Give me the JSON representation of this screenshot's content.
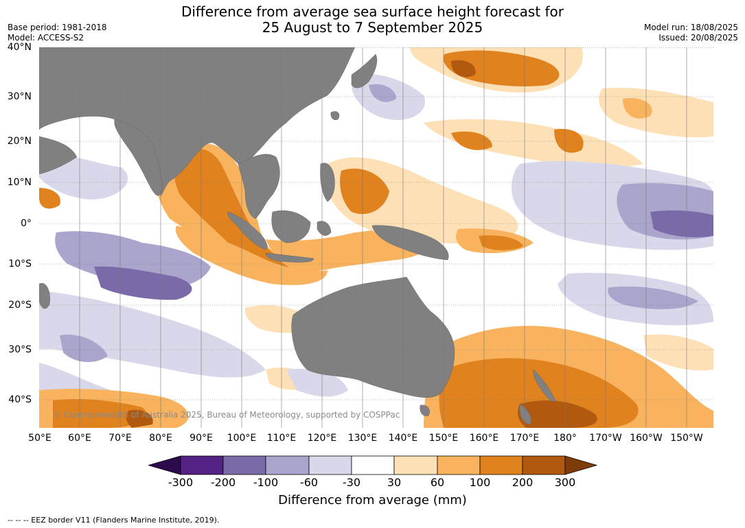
{
  "header": {
    "title_line1": "Difference from average sea surface height forecast for",
    "title_line2": "25 August to 7 September 2025",
    "base_period": "Base period: 1981-2018",
    "model": "Model: ACCESS-S2",
    "model_run": "Model run: 18/08/2025",
    "issued": "Issued: 20/08/2025"
  },
  "map": {
    "copyright": "© Commonwealth of Australia 2025, Bureau of Meteorology, supported by COSPPac",
    "land_color": "#808080",
    "lat_ticks": [
      "40°N",
      "30°N",
      "20°N",
      "10°N",
      "0°",
      "10°S",
      "20°S",
      "30°S",
      "40°S"
    ],
    "lon_ticks": [
      "50°E",
      "60°E",
      "70°E",
      "80°E",
      "90°E",
      "100°E",
      "110°E",
      "120°E",
      "130°E",
      "140°E",
      "150°E",
      "160°E",
      "170°E",
      "180°",
      "170°W",
      "160°W",
      "150°W"
    ]
  },
  "colorbar": {
    "title": "Difference from average (mm)",
    "tick_labels": [
      "-300",
      "-200",
      "-100",
      "-60",
      "-30",
      "30",
      "60",
      "100",
      "200",
      "300"
    ],
    "colors": [
      "#2d0a4e",
      "#542185",
      "#7b6aa8",
      "#aaa5cc",
      "#d8d8ea",
      "#ffffff",
      "#fee0b6",
      "#f9b35e",
      "#e0821e",
      "#b15a0f",
      "#7f3b08"
    ]
  },
  "footer": {
    "eez_note": "--  --  -- EEZ border V11 (Flanders Marine Institute, 2019)."
  }
}
